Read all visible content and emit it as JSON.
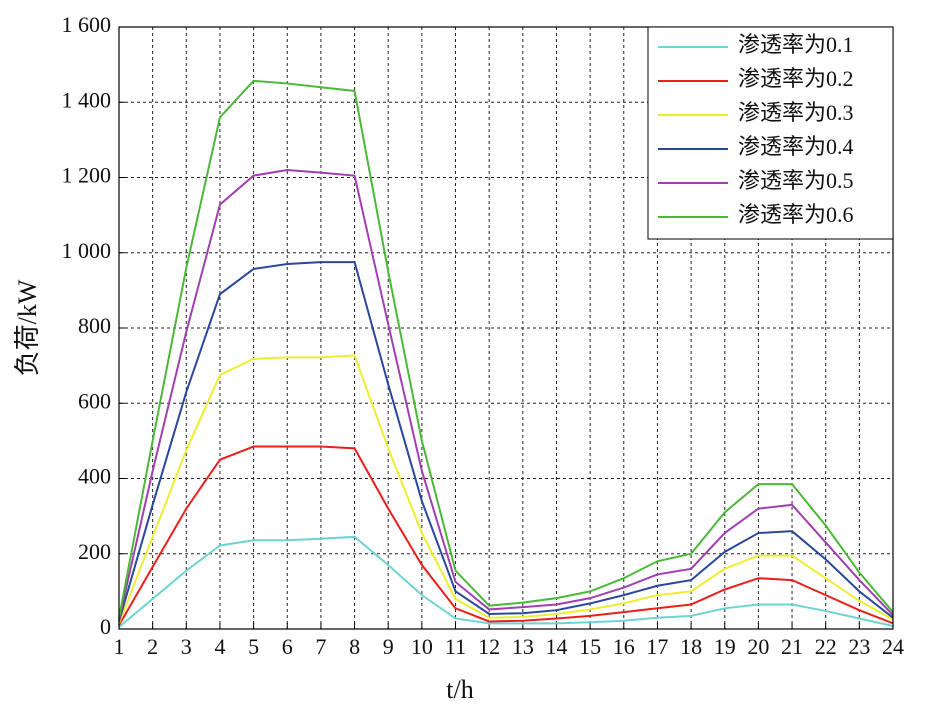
{
  "chart_data": {
    "type": "line",
    "xlabel": "t/h",
    "ylabel": "负荷/kW",
    "x": [
      1,
      2,
      3,
      4,
      5,
      6,
      7,
      8,
      9,
      10,
      11,
      12,
      13,
      14,
      15,
      16,
      17,
      18,
      19,
      20,
      21,
      22,
      23,
      24
    ],
    "xlim": [
      1,
      24
    ],
    "xticks": [
      1,
      2,
      3,
      4,
      5,
      6,
      7,
      8,
      9,
      10,
      11,
      12,
      13,
      14,
      15,
      16,
      17,
      18,
      19,
      20,
      21,
      22,
      23,
      24
    ],
    "ylim": [
      0,
      1600
    ],
    "yticks": [
      0,
      200,
      400,
      600,
      800,
      {
        "value": 1000,
        "label": "1 000"
      },
      {
        "value": 1200,
        "label": "1 200"
      },
      {
        "value": 1400,
        "label": "1 400"
      },
      {
        "value": 1600,
        "label": "1 600"
      }
    ],
    "grid": true,
    "legend": "upper right",
    "series": [
      {
        "name": "渗透率为0.1",
        "color": "#6fd3d3",
        "values": [
          5,
          80,
          155,
          222,
          236,
          236,
          240,
          245,
          170,
          90,
          28,
          15,
          15,
          15,
          18,
          22,
          30,
          35,
          55,
          65,
          65,
          48,
          28,
          8
        ]
      },
      {
        "name": "渗透率为0.2",
        "color": "#e8201c",
        "values": [
          10,
          165,
          320,
          450,
          485,
          485,
          485,
          480,
          320,
          170,
          55,
          20,
          22,
          28,
          35,
          45,
          55,
          65,
          105,
          135,
          130,
          90,
          50,
          15
        ]
      },
      {
        "name": "渗透率为0.3",
        "color": "#eeee30",
        "values": [
          15,
          245,
          475,
          675,
          718,
          722,
          722,
          727,
          480,
          255,
          80,
          30,
          32,
          40,
          52,
          68,
          90,
          100,
          160,
          195,
          195,
          135,
          75,
          25
        ]
      },
      {
        "name": "渗透率为0.4",
        "color": "#2a479c",
        "values": [
          20,
          330,
          630,
          890,
          957,
          970,
          975,
          975,
          650,
          340,
          100,
          40,
          42,
          50,
          68,
          90,
          115,
          130,
          205,
          255,
          260,
          185,
          100,
          30
        ]
      },
      {
        "name": "渗透率为0.5",
        "color": "#a040b0",
        "values": [
          25,
          420,
          790,
          1128,
          1205,
          1220,
          1213,
          1205,
          810,
          420,
          125,
          52,
          58,
          65,
          82,
          110,
          145,
          160,
          255,
          320,
          330,
          230,
          130,
          37
        ]
      },
      {
        "name": "渗透率为0.6",
        "color": "#4cb838",
        "values": [
          30,
          500,
          960,
          1360,
          1457,
          1450,
          1440,
          1430,
          950,
          500,
          155,
          62,
          70,
          82,
          100,
          135,
          180,
          200,
          310,
          385,
          385,
          275,
          150,
          45
        ]
      }
    ]
  }
}
